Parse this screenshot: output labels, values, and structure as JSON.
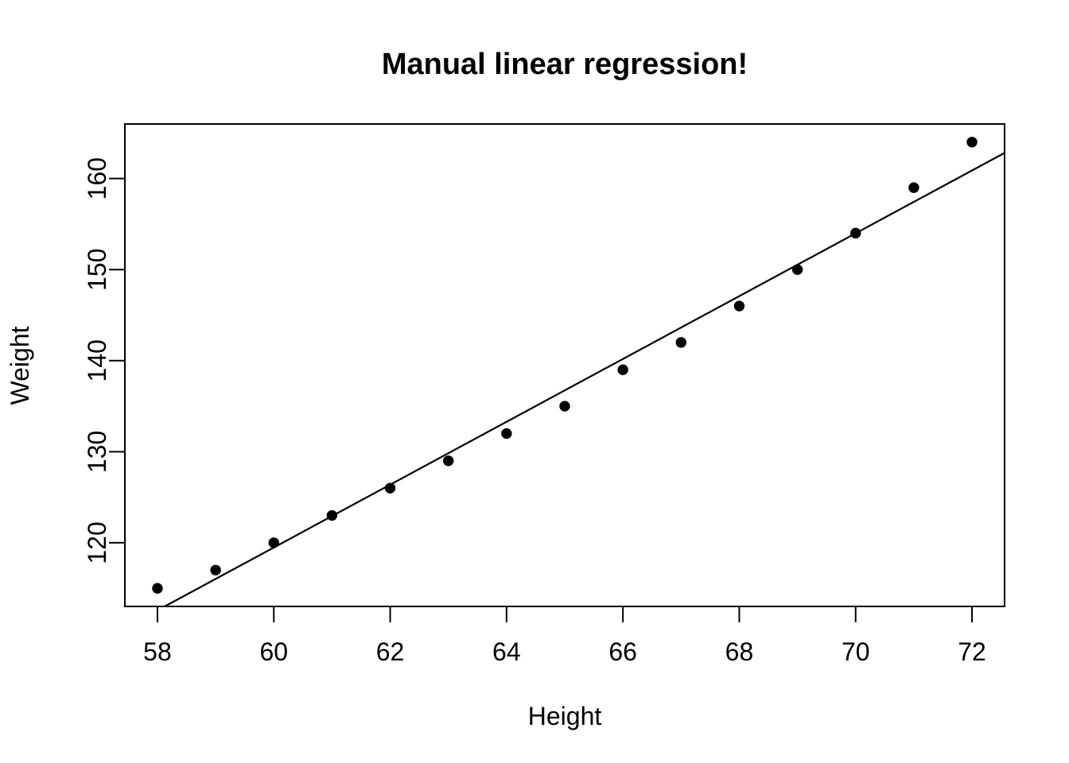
{
  "chart_data": {
    "type": "scatter",
    "title": "Manual linear regression!",
    "xlabel": "Height",
    "ylabel": "Weight",
    "x": [
      58,
      59,
      60,
      61,
      62,
      63,
      64,
      65,
      66,
      67,
      68,
      69,
      70,
      71,
      72
    ],
    "y": [
      115,
      117,
      120,
      123,
      126,
      129,
      132,
      135,
      139,
      142,
      146,
      150,
      154,
      159,
      164
    ],
    "x_ticks": [
      "58",
      "60",
      "62",
      "64",
      "66",
      "68",
      "70",
      "72"
    ],
    "x_tick_values": [
      58,
      60,
      62,
      64,
      66,
      68,
      70,
      72
    ],
    "y_ticks": [
      "120",
      "130",
      "140",
      "150",
      "160"
    ],
    "y_tick_values": [
      120,
      130,
      140,
      150,
      160
    ],
    "xlim": [
      57.44,
      72.56
    ],
    "ylim": [
      113.01,
      165.99
    ],
    "regression_line": {
      "slope": 3.45,
      "intercept": -87.5167
    },
    "point_style": {
      "shape": "filled-circle",
      "color": "#000000",
      "radius_px": 6.7
    },
    "line_color": "#000000",
    "axis_color": "#000000",
    "background_color": "#ffffff",
    "grid": false,
    "legend": null
  }
}
